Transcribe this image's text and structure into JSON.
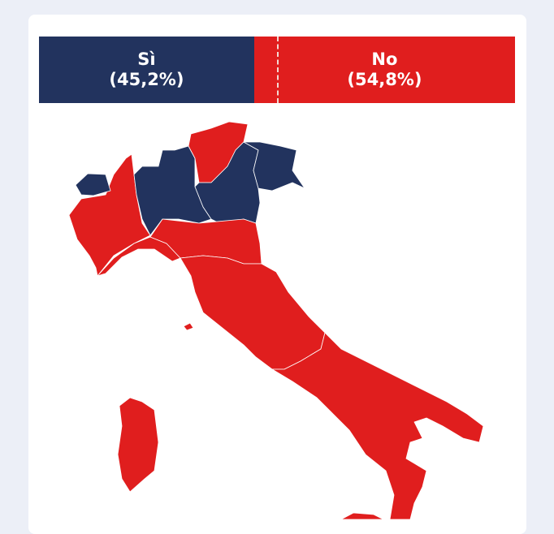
{
  "results": {
    "si": {
      "label": "Sì",
      "percent_text": "(45,2%)",
      "percent": 45.2,
      "color": "#22335e"
    },
    "no": {
      "label": "No",
      "percent_text": "(54,8%)",
      "percent": 54.8,
      "color": "#e01e1e"
    }
  },
  "majority_line_percent": 50,
  "map": {
    "background": "#ffffff",
    "border_color": "#ffffff"
  }
}
